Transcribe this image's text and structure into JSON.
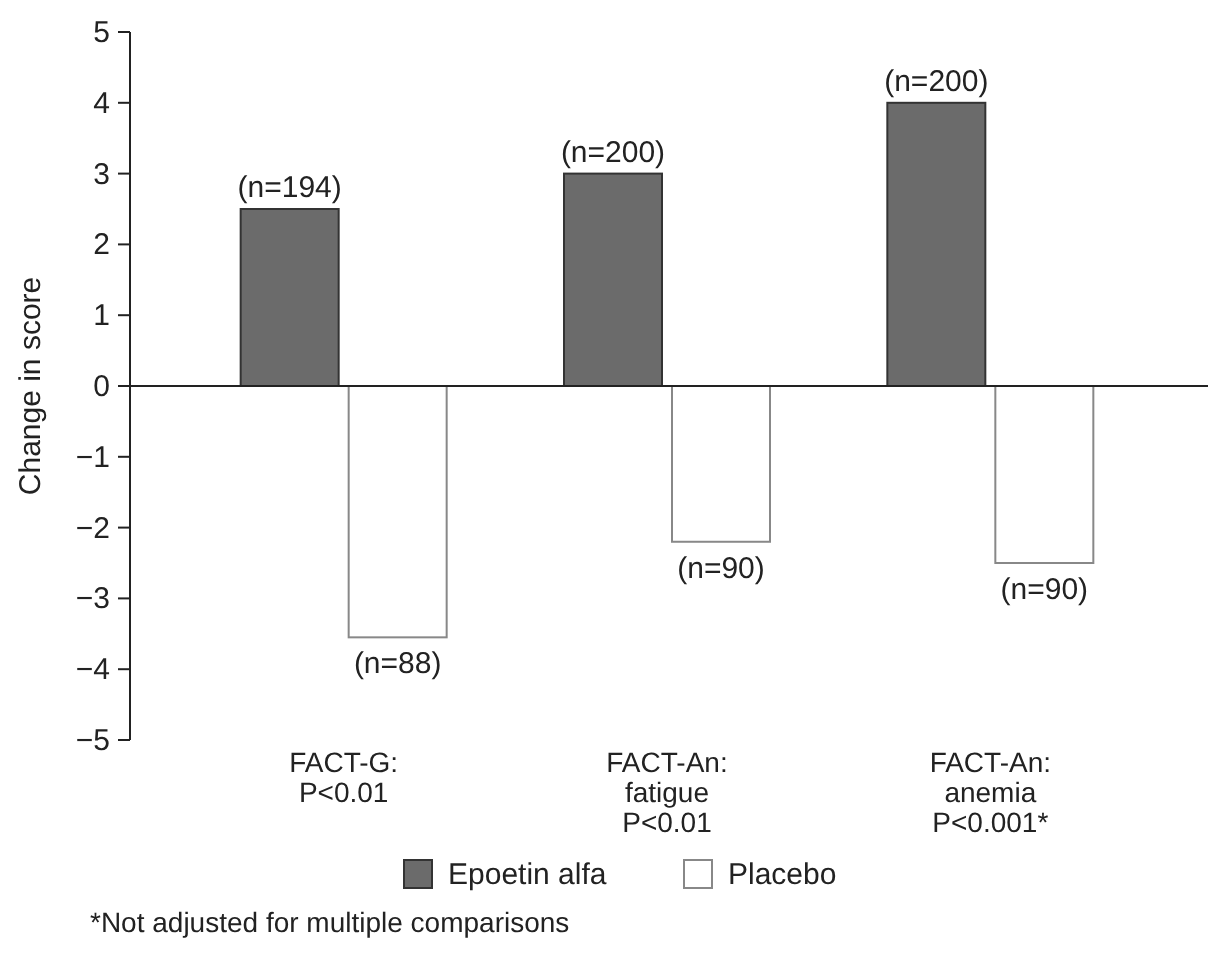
{
  "chart_data": {
    "type": "bar",
    "ylabel": "Change in score",
    "categories": [
      "FACT-G:\nP<0.01",
      "FACT-An:\nfatigue\nP<0.01",
      "FACT-An:\nanemia\nP<0.001*"
    ],
    "series": [
      {
        "name": "Epoetin alfa",
        "color": "#6b6b6b",
        "values": [
          2.5,
          3.0,
          4.0
        ]
      },
      {
        "name": "Placebo",
        "color": "#ffffff",
        "values": [
          -3.55,
          -2.2,
          -2.5
        ]
      }
    ],
    "ylim": [
      -5,
      5
    ],
    "yticks": [
      -5,
      -4,
      -3,
      -2,
      -1,
      0,
      1,
      2,
      3,
      4,
      5
    ],
    "legend": "bottom",
    "annotations": [
      {
        "text": "(n=194)",
        "x": "FACT-G:\nP<0.01",
        "y": 2.5
      },
      {
        "text": "(n=88)",
        "x": "FACT-G:\nP<0.01",
        "y": -3.55
      },
      {
        "text": "(n=200)",
        "x": "FACT-An:\nfatigue\nP<0.01",
        "y": 3.0
      },
      {
        "text": "(n=90)",
        "x": "FACT-An:\nfatigue\nP<0.01",
        "y": -2.2
      },
      {
        "text": "(n=200)",
        "x": "FACT-An:\nanemia\nP<0.001*",
        "y": 4.0
      },
      {
        "text": "(n=90)",
        "x": "FACT-An:\nanemia\nP<0.001*",
        "y": -2.5
      },
      "*Not adjusted for multiple comparisons"
    ]
  }
}
